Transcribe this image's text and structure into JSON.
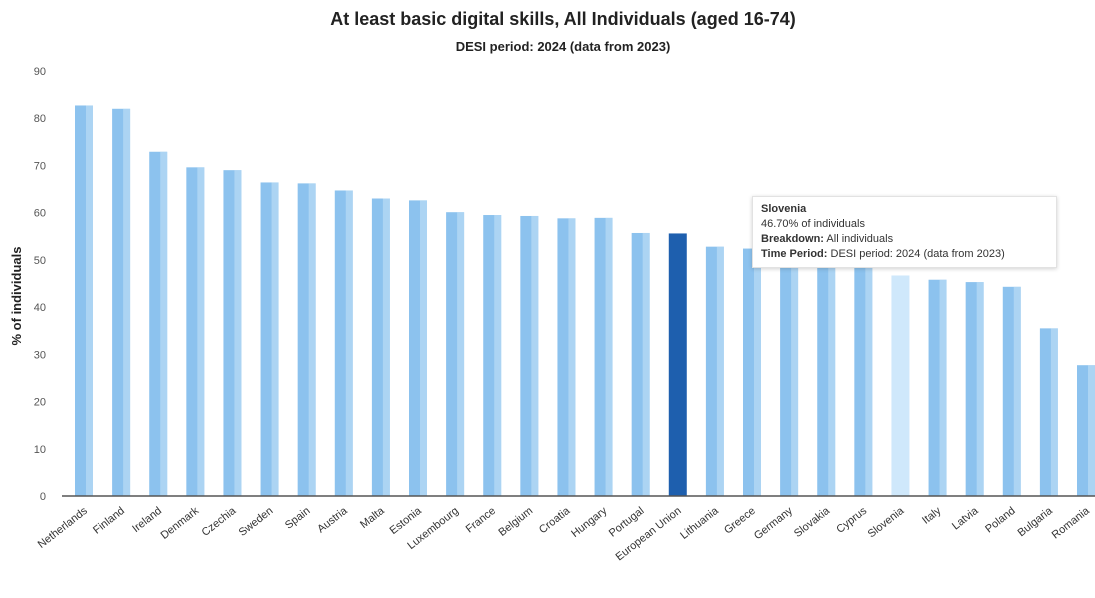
{
  "chart_data": {
    "type": "bar",
    "title": "At least basic digital skills, All Individuals (aged 16-74)",
    "subtitle": "DESI period: 2024 (data from 2023)",
    "xlabel": "",
    "ylabel": "% of individuals",
    "ylim": [
      0,
      90
    ],
    "yticks": [
      0,
      10,
      20,
      30,
      40,
      50,
      60,
      70,
      80,
      90
    ],
    "grid": false,
    "categories": [
      "Netherlands",
      "Finland",
      "Ireland",
      "Denmark",
      "Czechia",
      "Sweden",
      "Spain",
      "Austria",
      "Malta",
      "Estonia",
      "Luxembourg",
      "France",
      "Belgium",
      "Croatia",
      "Hungary",
      "Portugal",
      "European Union",
      "Lithuania",
      "Greece",
      "Germany",
      "Slovakia",
      "Cyprus",
      "Slovenia",
      "Italy",
      "Latvia",
      "Poland",
      "Bulgaria",
      "Romania"
    ],
    "values": [
      82.7,
      82.0,
      72.9,
      69.6,
      69.0,
      66.4,
      66.2,
      64.7,
      63.0,
      62.6,
      60.1,
      59.5,
      59.3,
      58.8,
      58.9,
      55.7,
      55.6,
      52.8,
      52.4,
      52.2,
      51.7,
      49.5,
      46.7,
      45.8,
      45.3,
      44.3,
      35.5,
      27.7
    ],
    "highlight": "European Union",
    "hovered": "Slovenia",
    "colors": {
      "bar": "#8cc2ee",
      "bar_light": "#c7e3f8",
      "highlight": "#1e5fae",
      "hovered": "#cfe8fb",
      "axis": "#555555"
    }
  },
  "tooltip": {
    "title": "Slovenia",
    "value_text": "46.70% of individuals",
    "breakdown_label": "Breakdown:",
    "breakdown_value": "All individuals",
    "period_label": "Time Period:",
    "period_value": "DESI period: 2024 (data from 2023)"
  }
}
